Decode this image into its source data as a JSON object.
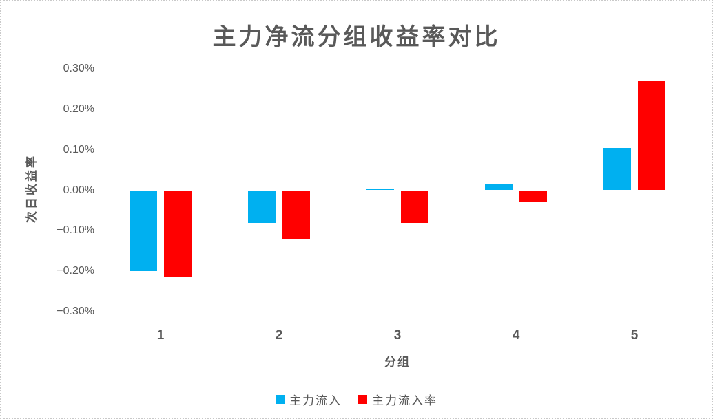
{
  "chart_data": {
    "type": "bar",
    "title": "主力净流分组收益率对比",
    "xlabel": "分组",
    "ylabel": "次日收益率",
    "categories": [
      "1",
      "2",
      "3",
      "4",
      "5"
    ],
    "series": [
      {
        "name": "主力流入",
        "color": "#00B0F0",
        "values": [
          -0.2,
          -0.08,
          0.003,
          0.015,
          0.105
        ]
      },
      {
        "name": "主力流入率",
        "color": "#FF0000",
        "values": [
          -0.215,
          -0.12,
          -0.08,
          -0.03,
          0.27
        ]
      }
    ],
    "value_unit": "%",
    "ylim": [
      -0.3,
      0.3
    ],
    "ytick_step": 0.1,
    "ytick_labels": [
      "0.30%",
      "0.20%",
      "0.10%",
      "0.00%",
      "−0.10%",
      "−0.20%",
      "−0.30%"
    ],
    "grid": "zero-line-only",
    "legend_position": "bottom"
  },
  "colors": {
    "text": "#595959",
    "series_blue": "#00B0F0",
    "series_red": "#FF0000",
    "zero_line": "#e6d9c8",
    "frame_border": "#c9c9c9"
  }
}
